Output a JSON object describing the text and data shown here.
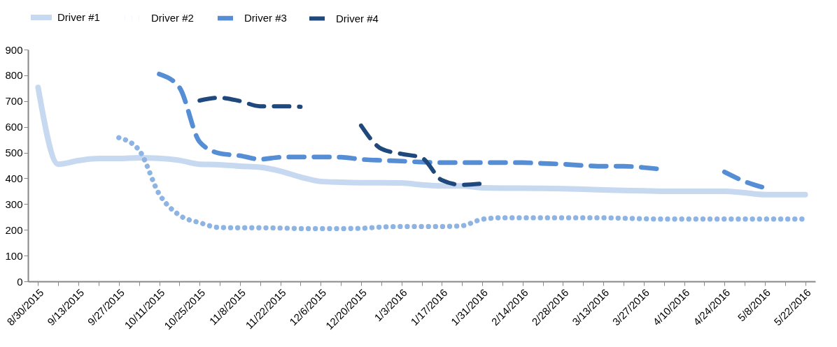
{
  "chart_data": {
    "type": "line",
    "categories": [
      "8/30/2015",
      null,
      "9/13/2015",
      null,
      "9/27/2015",
      null,
      "10/11/2015",
      null,
      "10/25/2015",
      null,
      "11/8/2015",
      null,
      "11/22/2015",
      null,
      "12/6/2015",
      null,
      "12/20/2015",
      null,
      "1/3/2016",
      null,
      "1/17/2016",
      null,
      "1/31/2016",
      null,
      "2/14/2016",
      null,
      "2/28/2016",
      null,
      "3/13/2016",
      null,
      "3/27/2016",
      null,
      "4/10/2016",
      null,
      "4/24/2016",
      null,
      "5/8/2016",
      null,
      "5/22/2016"
    ],
    "series": [
      {
        "name": "Driver #1",
        "color": "#c6d9f1",
        "line_style": "solid",
        "values": [
          753,
          455,
          469,
          477,
          477,
          480,
          478,
          470,
          455,
          453,
          447,
          443,
          428,
          405,
          388,
          385,
          383,
          383,
          382,
          375,
          371,
          371,
          363,
          362,
          362,
          361,
          360,
          358,
          355,
          353,
          352,
          350,
          350,
          350,
          350,
          344,
          337,
          337,
          337
        ]
      },
      {
        "name": "Driver #2",
        "color": "#8db4e2",
        "line_style": "dotted",
        "values": [
          null,
          null,
          null,
          null,
          558,
          510,
          339,
          257,
          228,
          209,
          208,
          208,
          207,
          205,
          205,
          205,
          206,
          211,
          213,
          213,
          213,
          216,
          241,
          247,
          247,
          247,
          247,
          247,
          247,
          245,
          243,
          242,
          242,
          242,
          242,
          242,
          242,
          242,
          242
        ]
      },
      {
        "name": "Driver #3",
        "color": "#558ed5",
        "line_style": "dashed",
        "values": [
          null,
          null,
          null,
          null,
          null,
          null,
          805,
          753,
          542,
          497,
          488,
          474,
          482,
          483,
          483,
          482,
          474,
          470,
          467,
          463,
          461,
          461,
          461,
          461,
          461,
          458,
          455,
          450,
          447,
          447,
          442,
          434,
          null,
          null,
          425,
          388,
          363,
          null,
          null
        ]
      },
      {
        "name": "Driver #4",
        "color": "#1f497d",
        "line_style": "dashed",
        "values": [
          null,
          null,
          null,
          null,
          null,
          null,
          null,
          null,
          702,
          713,
          700,
          680,
          680,
          678,
          null,
          null,
          605,
          515,
          495,
          480,
          393,
          375,
          380,
          null,
          null,
          null,
          null,
          null,
          null,
          null,
          null,
          null,
          null,
          null,
          null,
          null,
          null,
          null,
          null
        ]
      }
    ],
    "ylim": [
      0,
      900
    ],
    "yticks": [
      0,
      100,
      200,
      300,
      400,
      500,
      600,
      700,
      800,
      900
    ],
    "grid": false,
    "legend": "top",
    "marker": "none"
  }
}
